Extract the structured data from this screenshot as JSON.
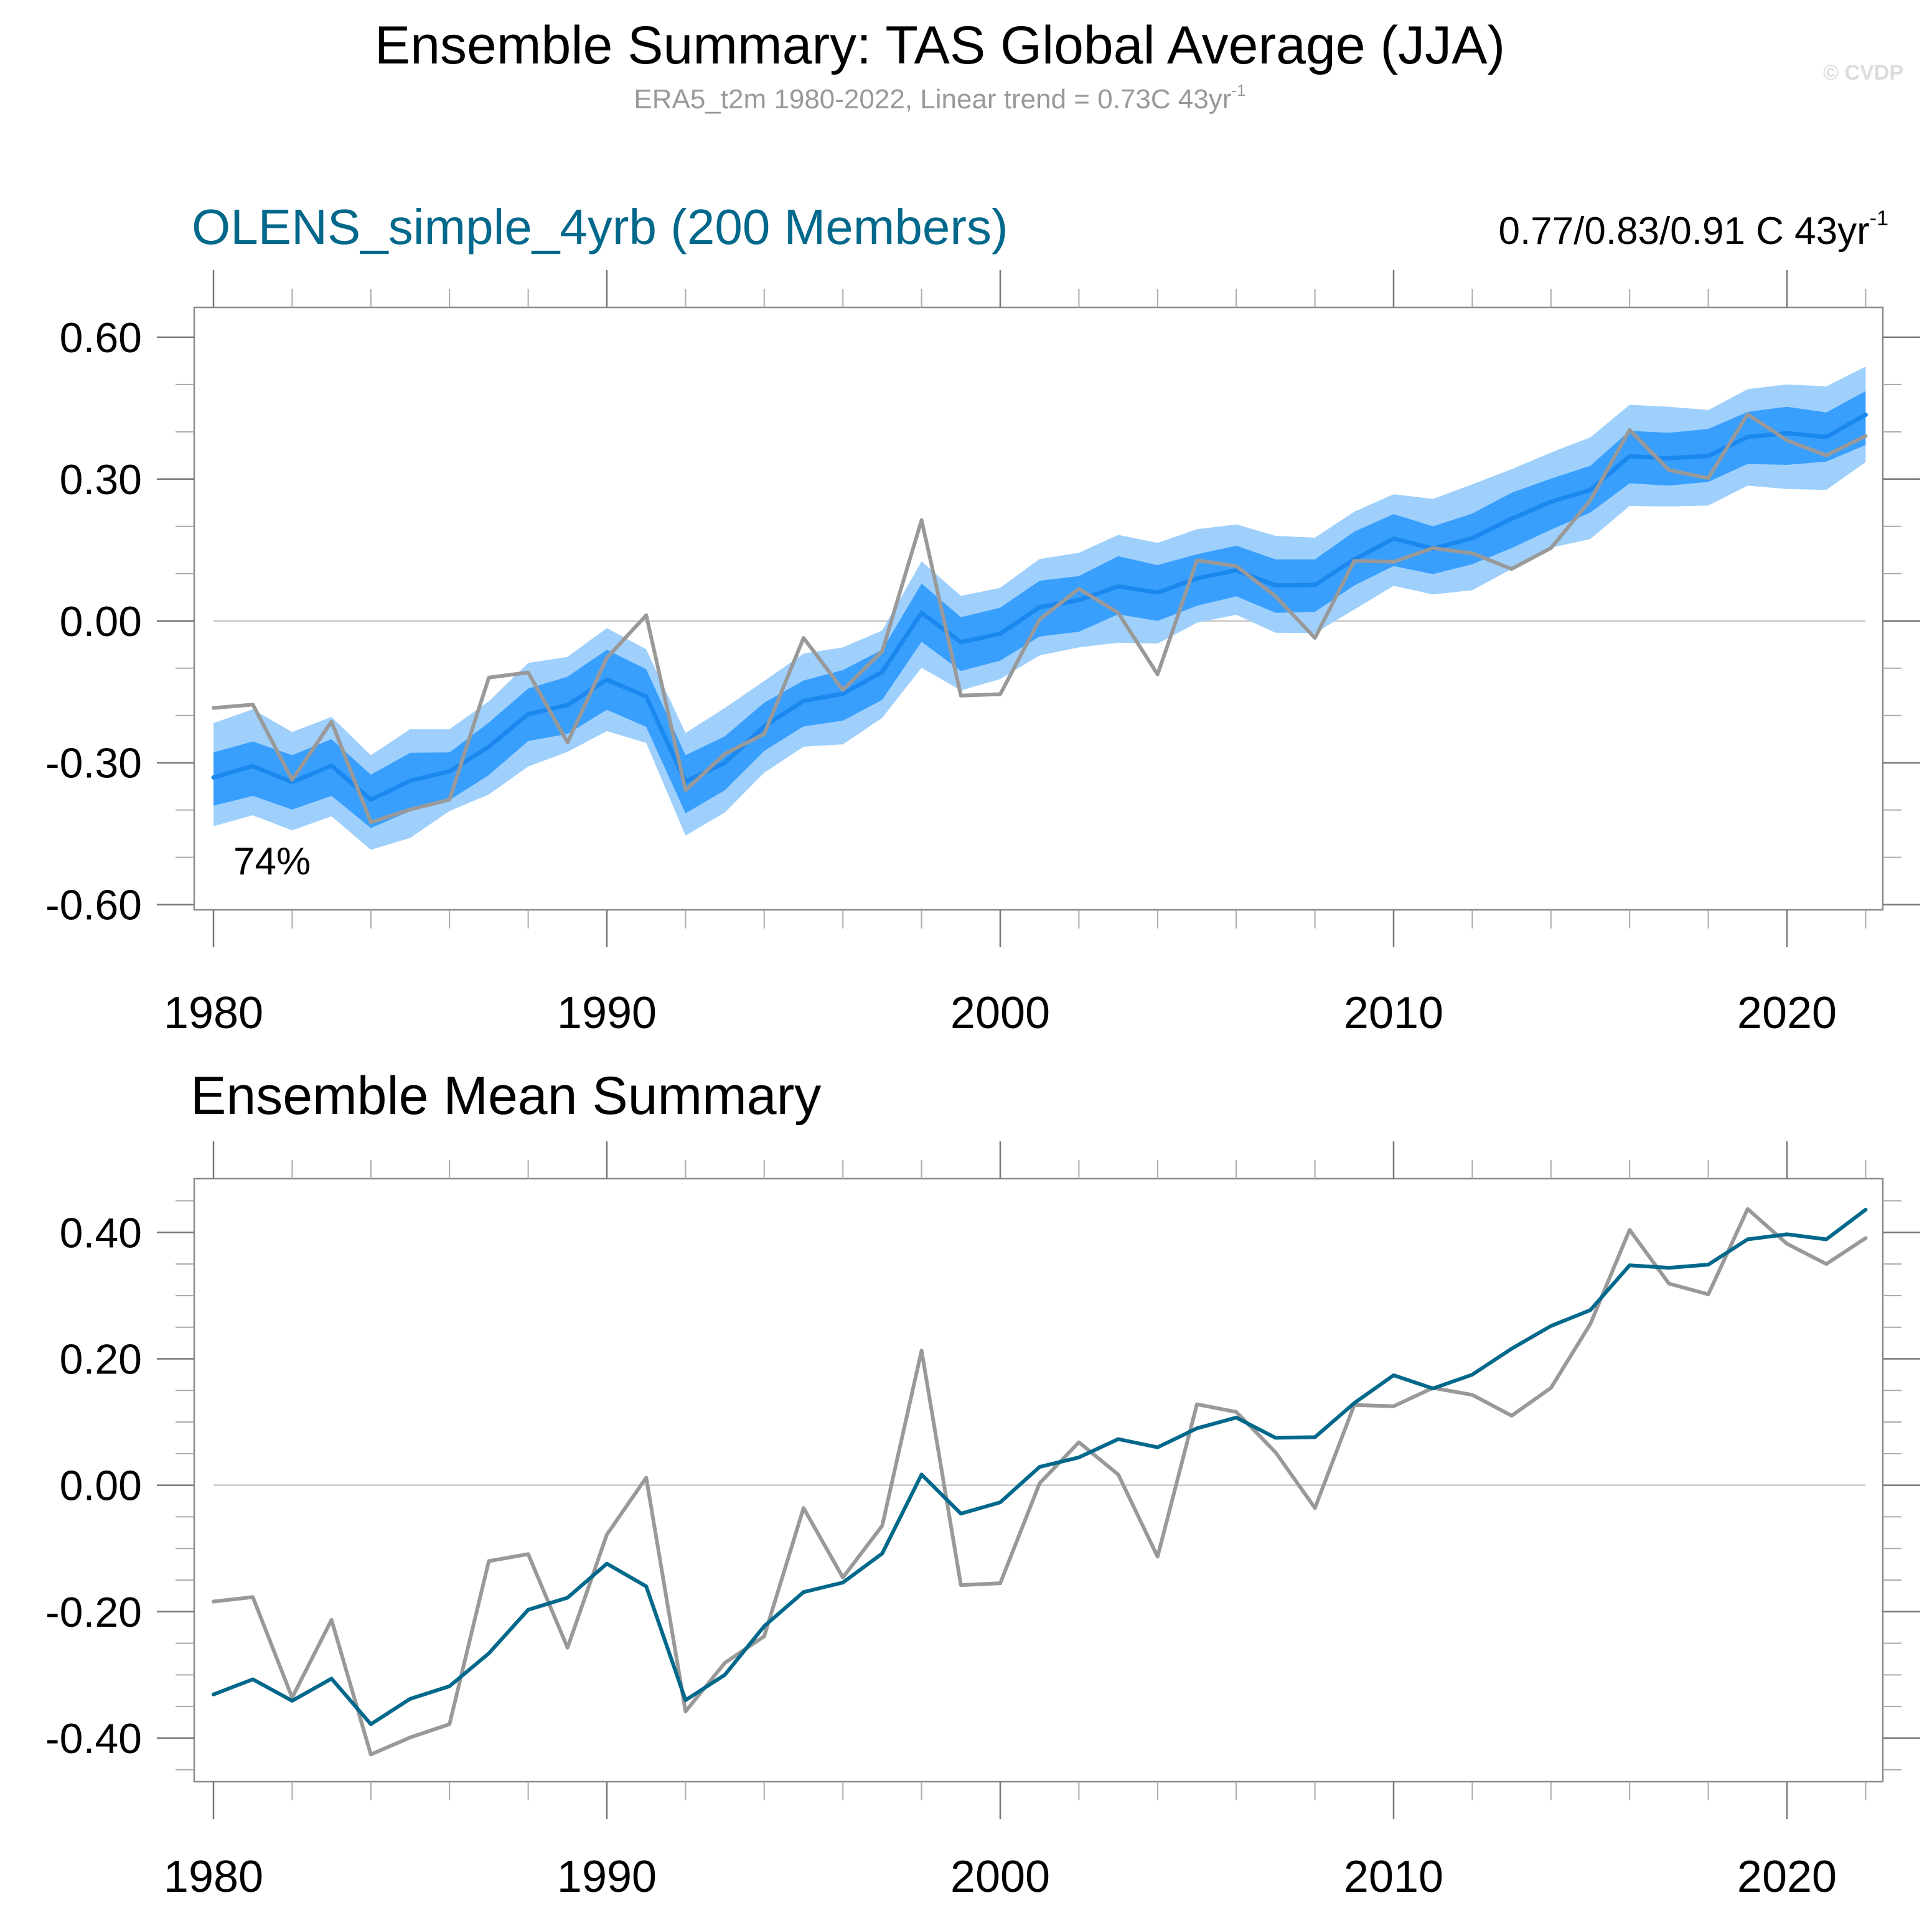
{
  "figure": {
    "title": "Ensemble Summary: TAS Global Average (JJA)",
    "subtitle": "ERA5_t2m 1980-2022, Linear trend = 0.73C 43yr",
    "subtitle_sup": "-1",
    "watermark": "© CVDP"
  },
  "colors": {
    "model_title": "#00688b",
    "band_outer": "#9fd0fc",
    "band_inner": "#399ffd",
    "ensemble_mean_top": "#1a88ee",
    "ensemble_mean_bottom": "#00688b",
    "observations": "#999999"
  },
  "chart_data": [
    {
      "type": "area",
      "title": "OLENS_simple_4yrb (200 Members)",
      "trend_text": "0.77/0.83/0.91 C 43yr",
      "trend_sup": "-1",
      "annotation": "74%",
      "xlabel": "",
      "ylabel": "",
      "xlim": [
        1980,
        2022
      ],
      "ylim": [
        -0.611,
        0.663
      ],
      "x_ticks": [
        1980,
        1990,
        2000,
        2010,
        2020
      ],
      "x_tick_labels": [
        "1980",
        "1990",
        "2000",
        "2010",
        "2020"
      ],
      "y_ticks": [
        -0.6,
        -0.3,
        0.0,
        0.3,
        0.6
      ],
      "y_tick_labels": [
        "-0.60",
        "-0.30",
        "0.00",
        "0.30",
        "0.60"
      ],
      "grid": false,
      "zero_line": true,
      "x": [
        1980,
        1981,
        1982,
        1983,
        1984,
        1985,
        1986,
        1987,
        1988,
        1989,
        1990,
        1991,
        1992,
        1993,
        1994,
        1995,
        1996,
        1997,
        1998,
        1999,
        2000,
        2001,
        2002,
        2003,
        2004,
        2005,
        2006,
        2007,
        2008,
        2009,
        2010,
        2011,
        2012,
        2013,
        2014,
        2015,
        2016,
        2017,
        2018,
        2019,
        2020,
        2021,
        2022
      ],
      "series": [
        {
          "name": "Ensemble outer range (upper)",
          "values": [
            -0.216,
            -0.187,
            -0.235,
            -0.203,
            -0.284,
            -0.229,
            -0.229,
            -0.17,
            -0.089,
            -0.076,
            -0.015,
            -0.06,
            -0.237,
            -0.184,
            -0.127,
            -0.069,
            -0.056,
            -0.02,
            0.126,
            0.053,
            0.07,
            0.131,
            0.144,
            0.182,
            0.165,
            0.194,
            0.204,
            0.18,
            0.176,
            0.231,
            0.268,
            0.258,
            0.289,
            0.321,
            0.356,
            0.388,
            0.457,
            0.453,
            0.446,
            0.49,
            0.5,
            0.496,
            0.538
          ]
        },
        {
          "name": "Ensemble inner range (upper)",
          "values": [
            -0.278,
            -0.255,
            -0.284,
            -0.25,
            -0.325,
            -0.279,
            -0.278,
            -0.215,
            -0.143,
            -0.118,
            -0.061,
            -0.102,
            -0.284,
            -0.244,
            -0.173,
            -0.126,
            -0.104,
            -0.061,
            0.079,
            0.008,
            0.028,
            0.085,
            0.095,
            0.137,
            0.118,
            0.141,
            0.159,
            0.13,
            0.13,
            0.189,
            0.226,
            0.2,
            0.227,
            0.271,
            0.301,
            0.328,
            0.402,
            0.398,
            0.406,
            0.442,
            0.453,
            0.441,
            0.486
          ]
        },
        {
          "name": "Ensemble inner range (lower)",
          "values": [
            -0.391,
            -0.37,
            -0.399,
            -0.37,
            -0.438,
            -0.402,
            -0.379,
            -0.326,
            -0.254,
            -0.239,
            -0.188,
            -0.224,
            -0.407,
            -0.358,
            -0.275,
            -0.223,
            -0.211,
            -0.167,
            -0.044,
            -0.106,
            -0.084,
            -0.033,
            -0.023,
            0.014,
            0.0,
            0.032,
            0.052,
            0.017,
            0.019,
            0.075,
            0.116,
            0.099,
            0.12,
            0.154,
            0.193,
            0.229,
            0.291,
            0.286,
            0.294,
            0.332,
            0.33,
            0.337,
            0.372
          ]
        },
        {
          "name": "Ensemble outer range (lower)",
          "values": [
            -0.434,
            -0.411,
            -0.443,
            -0.413,
            -0.484,
            -0.459,
            -0.402,
            -0.367,
            -0.308,
            -0.277,
            -0.233,
            -0.258,
            -0.454,
            -0.405,
            -0.321,
            -0.266,
            -0.261,
            -0.205,
            -0.099,
            -0.147,
            -0.123,
            -0.073,
            -0.056,
            -0.046,
            -0.048,
            -0.004,
            0.013,
            -0.025,
            -0.026,
            0.024,
            0.074,
            0.056,
            0.065,
            0.11,
            0.155,
            0.173,
            0.243,
            0.242,
            0.244,
            0.286,
            0.279,
            0.277,
            0.336
          ]
        },
        {
          "name": "Ensemble mean",
          "values": [
            -0.331,
            -0.307,
            -0.341,
            -0.306,
            -0.378,
            -0.338,
            -0.318,
            -0.266,
            -0.197,
            -0.178,
            -0.124,
            -0.16,
            -0.34,
            -0.3,
            -0.223,
            -0.169,
            -0.154,
            -0.108,
            0.017,
            -0.045,
            -0.027,
            0.029,
            0.044,
            0.073,
            0.06,
            0.09,
            0.107,
            0.075,
            0.076,
            0.13,
            0.174,
            0.153,
            0.175,
            0.216,
            0.252,
            0.277,
            0.348,
            0.344,
            0.349,
            0.389,
            0.397,
            0.389,
            0.436
          ]
        },
        {
          "name": "ERA5_t2m",
          "values": [
            -0.184,
            -0.177,
            -0.336,
            -0.213,
            -0.426,
            -0.399,
            -0.378,
            -0.12,
            -0.109,
            -0.257,
            -0.078,
            0.012,
            -0.358,
            -0.281,
            -0.239,
            -0.036,
            -0.146,
            -0.064,
            0.213,
            -0.158,
            -0.155,
            0.003,
            0.068,
            0.017,
            -0.113,
            0.128,
            0.116,
            0.052,
            -0.036,
            0.127,
            0.125,
            0.154,
            0.143,
            0.11,
            0.154,
            0.255,
            0.404,
            0.319,
            0.302,
            0.437,
            0.382,
            0.35,
            0.391
          ]
        }
      ]
    },
    {
      "type": "line",
      "title": "Ensemble Mean Summary",
      "xlabel": "",
      "ylabel": "",
      "xlim": [
        1980,
        2022
      ],
      "ylim": [
        -0.469,
        0.485
      ],
      "x_ticks": [
        1980,
        1990,
        2000,
        2010,
        2020
      ],
      "x_tick_labels": [
        "1980",
        "1990",
        "2000",
        "2010",
        "2020"
      ],
      "y_ticks": [
        -0.4,
        -0.2,
        0.0,
        0.2,
        0.4
      ],
      "y_tick_labels": [
        "-0.40",
        "-0.20",
        "0.00",
        "0.20",
        "0.40"
      ],
      "grid": false,
      "zero_line": true,
      "x": [
        1980,
        1981,
        1982,
        1983,
        1984,
        1985,
        1986,
        1987,
        1988,
        1989,
        1990,
        1991,
        1992,
        1993,
        1994,
        1995,
        1996,
        1997,
        1998,
        1999,
        2000,
        2001,
        2002,
        2003,
        2004,
        2005,
        2006,
        2007,
        2008,
        2009,
        2010,
        2011,
        2012,
        2013,
        2014,
        2015,
        2016,
        2017,
        2018,
        2019,
        2020,
        2021,
        2022
      ],
      "series": [
        {
          "name": "ERA5_t2m",
          "values": [
            -0.184,
            -0.177,
            -0.336,
            -0.213,
            -0.426,
            -0.399,
            -0.378,
            -0.12,
            -0.109,
            -0.257,
            -0.078,
            0.012,
            -0.358,
            -0.281,
            -0.239,
            -0.036,
            -0.146,
            -0.064,
            0.213,
            -0.158,
            -0.155,
            0.003,
            0.068,
            0.017,
            -0.113,
            0.128,
            0.116,
            0.052,
            -0.036,
            0.127,
            0.125,
            0.154,
            0.143,
            0.11,
            0.154,
            0.255,
            0.404,
            0.319,
            0.302,
            0.437,
            0.382,
            0.35,
            0.391
          ]
        },
        {
          "name": "OLENS_simple_4yrb ensemble mean",
          "values": [
            -0.331,
            -0.307,
            -0.341,
            -0.306,
            -0.378,
            -0.338,
            -0.318,
            -0.266,
            -0.197,
            -0.178,
            -0.124,
            -0.16,
            -0.34,
            -0.3,
            -0.223,
            -0.169,
            -0.154,
            -0.108,
            0.017,
            -0.045,
            -0.027,
            0.029,
            0.044,
            0.073,
            0.06,
            0.09,
            0.107,
            0.075,
            0.076,
            0.13,
            0.174,
            0.153,
            0.175,
            0.216,
            0.252,
            0.277,
            0.348,
            0.344,
            0.349,
            0.389,
            0.397,
            0.389,
            0.436
          ]
        }
      ]
    }
  ]
}
